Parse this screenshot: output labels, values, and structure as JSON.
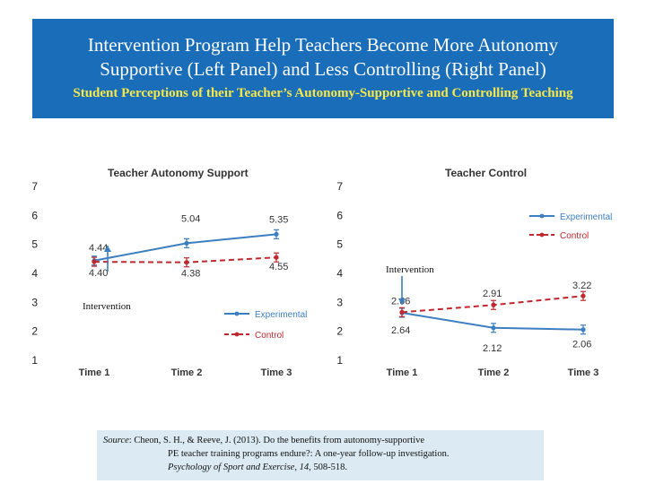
{
  "banner": {
    "title_line1": "Intervention Program Help Teachers Become More Autonomy",
    "title_line2": "Supportive (Left Panel) and Less Controlling (Right Panel)",
    "subtitle": "Student Perceptions of their Teacher’s Autonomy-Supportive and Controlling Teaching"
  },
  "chart_data": [
    {
      "type": "line",
      "title": "Teacher Autonomy Support",
      "categories": [
        "Time 1",
        "Time 2",
        "Time 3"
      ],
      "ylim": [
        1,
        7
      ],
      "y_ticks": [
        "1",
        "2",
        "3",
        "4",
        "5",
        "6",
        "7"
      ],
      "grid": false,
      "legend_position": "bottom-right",
      "series": [
        {
          "name": "Experimental",
          "color": "#3c7fc1",
          "dash": "solid",
          "values": [
            4.44,
            5.04,
            5.35
          ],
          "labels": [
            "4.44",
            "5.04",
            "5.35"
          ]
        },
        {
          "name": "Control",
          "color": "#c0282d",
          "dash": "dashed",
          "values": [
            4.4,
            4.38,
            4.55
          ],
          "labels": [
            "4.40",
            "4.38",
            "4.55"
          ]
        }
      ],
      "annotation": "Intervention"
    },
    {
      "type": "line",
      "title": "Teacher Control",
      "categories": [
        "Time 1",
        "Time 2",
        "Time 3"
      ],
      "ylim": [
        1,
        7
      ],
      "y_ticks": [
        "1",
        "2",
        "3",
        "4",
        "5",
        "6",
        "7"
      ],
      "grid": false,
      "legend_position": "top-right",
      "series": [
        {
          "name": "Experimental",
          "color": "#3c7fc1",
          "dash": "solid",
          "values": [
            2.64,
            2.12,
            2.06
          ],
          "labels": [
            "2.64",
            "2.12",
            "2.06"
          ]
        },
        {
          "name": "Control",
          "color": "#c0282d",
          "dash": "dashed",
          "values": [
            2.66,
            2.91,
            3.22
          ],
          "labels": [
            "2.66",
            "2.91",
            "3.22"
          ]
        }
      ],
      "annotation": "Intervention"
    }
  ],
  "source": {
    "prefix": "Source",
    "line1_rest": ": Cheon, S. H., & Reeve, J. (2013). Do the benefits from autonomy-supportive",
    "line2": "PE teacher training programs endure?: A one-year follow-up investigation.",
    "journal": "Psychology of Sport and Exercise",
    "volume": "14",
    "pages": ", 508-518."
  }
}
